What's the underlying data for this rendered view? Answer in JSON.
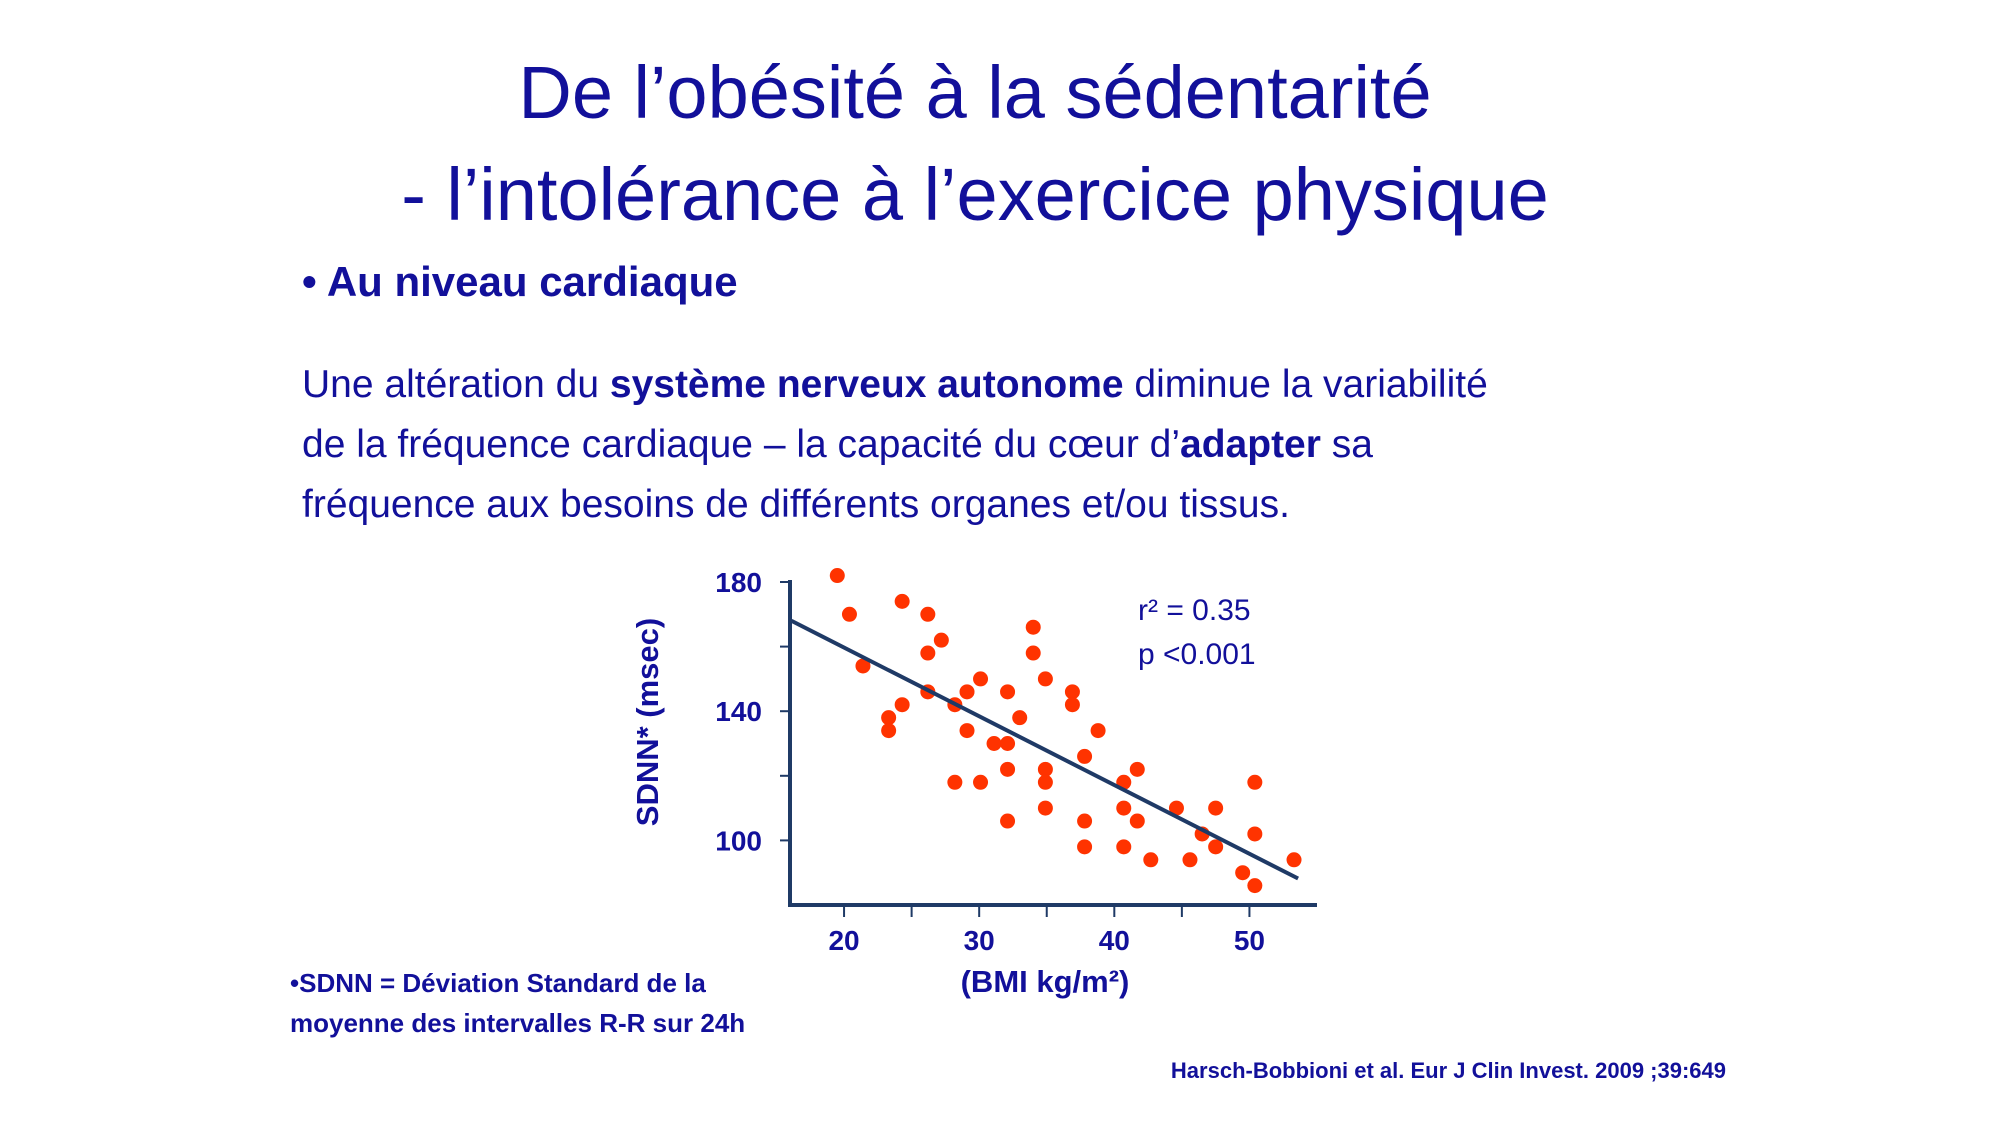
{
  "title": {
    "line1": "De l’obésité à la sédentarité",
    "line2": "- l’intolérance à l’exercice physique"
  },
  "bullet": "• Au niveau cardiaque",
  "paragraph": {
    "l1a": "Une altération du ",
    "l1b": "système nerveux autonome",
    "l1c": " diminue la variabilité",
    "l2a": "de la fréquence cardiaque – la capacité du cœur d’",
    "l2b": "adapter",
    "l2c": " sa",
    "l3": "fréquence aux besoins de différents organes et/ou tissus."
  },
  "footnote": {
    "line1": "•SDNN = Déviation Standard de la",
    "line2": "moyenne des intervalles R-R sur 24h"
  },
  "citation": "Harsch-Bobbioni et al. Eur J Clin Invest. 2009 ;39:649",
  "chart_data": {
    "type": "scatter",
    "xlabel": "(BMI kg/m²)",
    "ylabel": "SDNN* (msec)",
    "xlim": [
      16,
      55
    ],
    "ylim": [
      80,
      180
    ],
    "xticks": [
      20,
      30,
      40,
      50
    ],
    "yticks": [
      100,
      140,
      180
    ],
    "annotation": {
      "r2": "r² = 0.35",
      "p": "p <0.001"
    },
    "point_color": "#ff3300",
    "line_color": "#1f3a66",
    "regression_line": {
      "x": [
        16.1,
        53.6
      ],
      "y": [
        168,
        88.2
      ]
    },
    "points": [
      [
        19.5,
        182
      ],
      [
        20.4,
        170
      ],
      [
        21.4,
        154
      ],
      [
        24.3,
        174
      ],
      [
        23.3,
        138
      ],
      [
        23.3,
        134
      ],
      [
        24.3,
        142
      ],
      [
        26.2,
        170
      ],
      [
        27.2,
        162
      ],
      [
        26.2,
        158
      ],
      [
        26.2,
        146
      ],
      [
        28.2,
        142
      ],
      [
        28.2,
        118
      ],
      [
        29.1,
        146
      ],
      [
        29.1,
        134
      ],
      [
        30.1,
        150
      ],
      [
        30.1,
        118
      ],
      [
        31.1,
        130
      ],
      [
        32.1,
        130
      ],
      [
        32.1,
        146
      ],
      [
        32.1,
        122
      ],
      [
        32.1,
        106
      ],
      [
        33.0,
        138
      ],
      [
        34.0,
        166
      ],
      [
        34.0,
        158
      ],
      [
        34.9,
        150
      ],
      [
        34.9,
        122
      ],
      [
        34.9,
        118
      ],
      [
        34.9,
        110
      ],
      [
        36.9,
        146
      ],
      [
        36.9,
        142
      ],
      [
        37.8,
        126
      ],
      [
        37.8,
        106
      ],
      [
        37.8,
        98
      ],
      [
        38.8,
        134
      ],
      [
        40.7,
        118
      ],
      [
        40.7,
        110
      ],
      [
        40.7,
        98
      ],
      [
        41.7,
        122
      ],
      [
        41.7,
        106
      ],
      [
        42.7,
        94
      ],
      [
        44.6,
        110
      ],
      [
        45.6,
        94
      ],
      [
        46.5,
        102
      ],
      [
        47.5,
        110
      ],
      [
        47.5,
        98
      ],
      [
        49.5,
        90
      ],
      [
        50.4,
        118
      ],
      [
        50.4,
        102
      ],
      [
        50.4,
        86
      ],
      [
        53.3,
        94
      ]
    ]
  }
}
